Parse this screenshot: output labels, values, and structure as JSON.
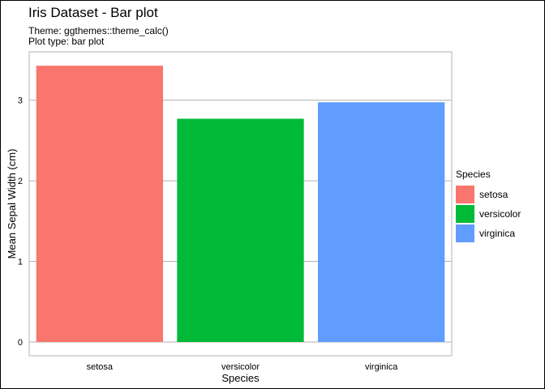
{
  "chart_data": {
    "type": "bar",
    "title": "Iris Dataset - Bar plot",
    "subtitle": [
      "Theme: ggthemes::theme_calc()",
      "Plot type: bar plot"
    ],
    "xlabel": "Species",
    "ylabel": "Mean Sepal Width (cm)",
    "categories": [
      "setosa",
      "versicolor",
      "virginica"
    ],
    "values": [
      3.428,
      2.77,
      2.974
    ],
    "colors": [
      "#F8766D",
      "#00BA38",
      "#619CFF"
    ],
    "ylim": [
      -0.171,
      3.6
    ],
    "yticks": [
      0,
      1,
      2,
      3
    ],
    "grid": "horizontal",
    "legend": {
      "title": "Species",
      "position": "right",
      "entries": [
        "setosa",
        "versicolor",
        "virginica"
      ]
    }
  }
}
